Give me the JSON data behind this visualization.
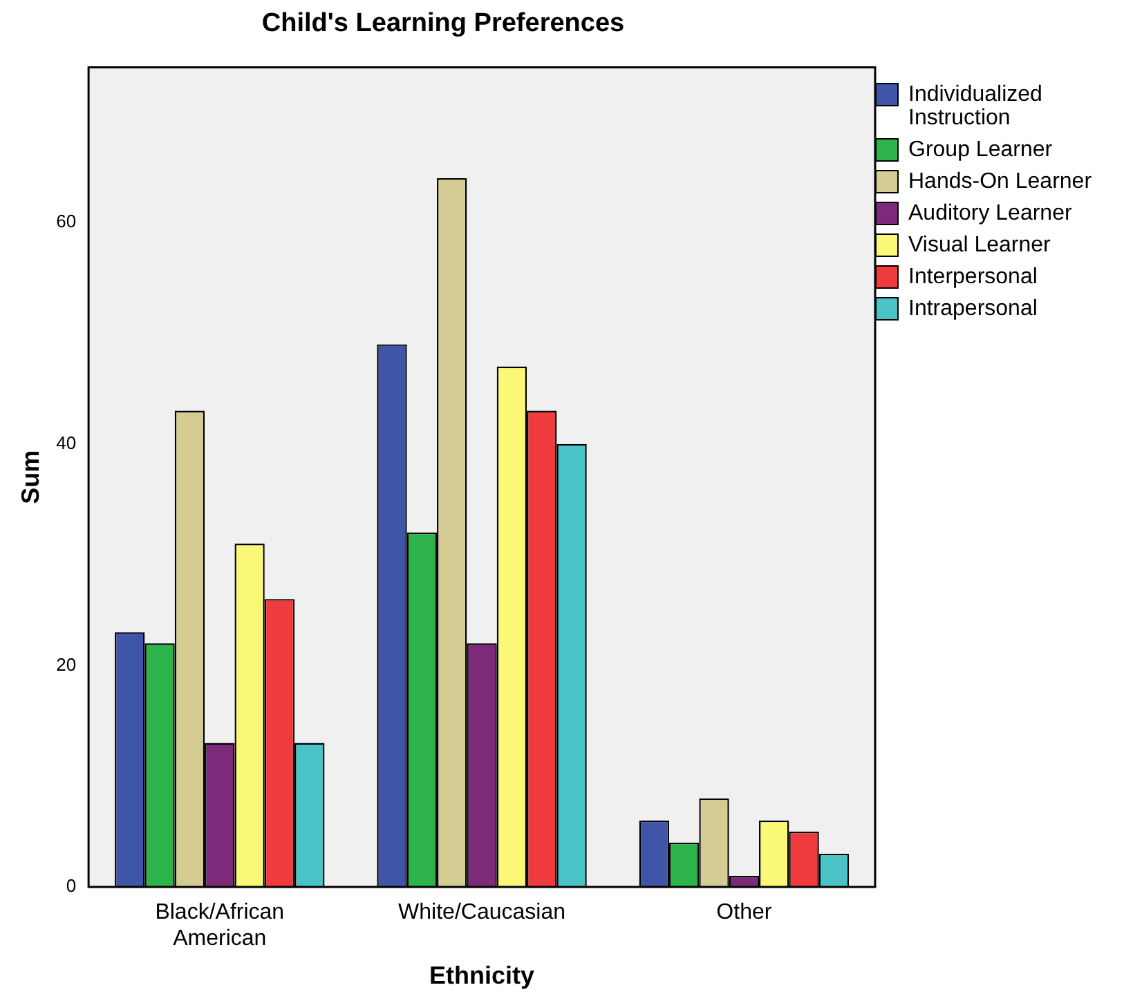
{
  "chart_data": {
    "type": "bar",
    "title": "Child's Learning Preferences",
    "xlabel": "Ethnicity",
    "ylabel": "Sum",
    "categories": [
      "Black/African American",
      "White/Caucasian",
      "Other"
    ],
    "series": [
      {
        "name": "Individualized Instruction",
        "color": "#3f56a8",
        "values": [
          23,
          49,
          6
        ]
      },
      {
        "name": "Group Learner",
        "color": "#2cb34a",
        "values": [
          22,
          32,
          4
        ]
      },
      {
        "name": "Hands-On Learner",
        "color": "#d4cc92",
        "values": [
          43,
          64,
          8
        ]
      },
      {
        "name": "Auditory Learner",
        "color": "#7d2a7b",
        "values": [
          13,
          22,
          1
        ]
      },
      {
        "name": "Visual Learner",
        "color": "#fbf877",
        "values": [
          31,
          47,
          6
        ]
      },
      {
        "name": "Interpersonal",
        "color": "#ef3b3e",
        "values": [
          26,
          43,
          5
        ]
      },
      {
        "name": "Intrapersonal",
        "color": "#4ac3c6",
        "values": [
          13,
          40,
          3
        ]
      }
    ],
    "ylim": [
      0,
      74
    ],
    "yticks": [
      0,
      20,
      40,
      60
    ],
    "grid": false,
    "legend": "top right"
  }
}
